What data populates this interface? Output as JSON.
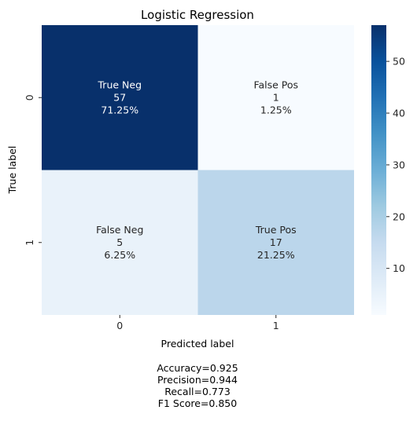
{
  "chart_data": {
    "type": "heatmap",
    "title": "Logistic Regression",
    "xlabel": "Predicted label",
    "ylabel": "True label",
    "x_categories": [
      "0",
      "1"
    ],
    "y_categories": [
      "0",
      "1"
    ],
    "values": [
      [
        57,
        1
      ],
      [
        5,
        17
      ]
    ],
    "cell_labels": [
      [
        [
          "True Neg",
          "57",
          "71.25%"
        ],
        [
          "False Pos",
          "1",
          "1.25%"
        ]
      ],
      [
        [
          "False Neg",
          "5",
          "6.25%"
        ],
        [
          "True Pos",
          "17",
          "21.25%"
        ]
      ]
    ],
    "colormap": "Blues",
    "colorbar": {
      "min": 1,
      "max": 57,
      "ticks": [
        10,
        20,
        30,
        40,
        50
      ]
    },
    "metrics": [
      "Accuracy=0.925",
      "Precision=0.944",
      "Recall=0.773",
      "F1 Score=0.850"
    ]
  }
}
